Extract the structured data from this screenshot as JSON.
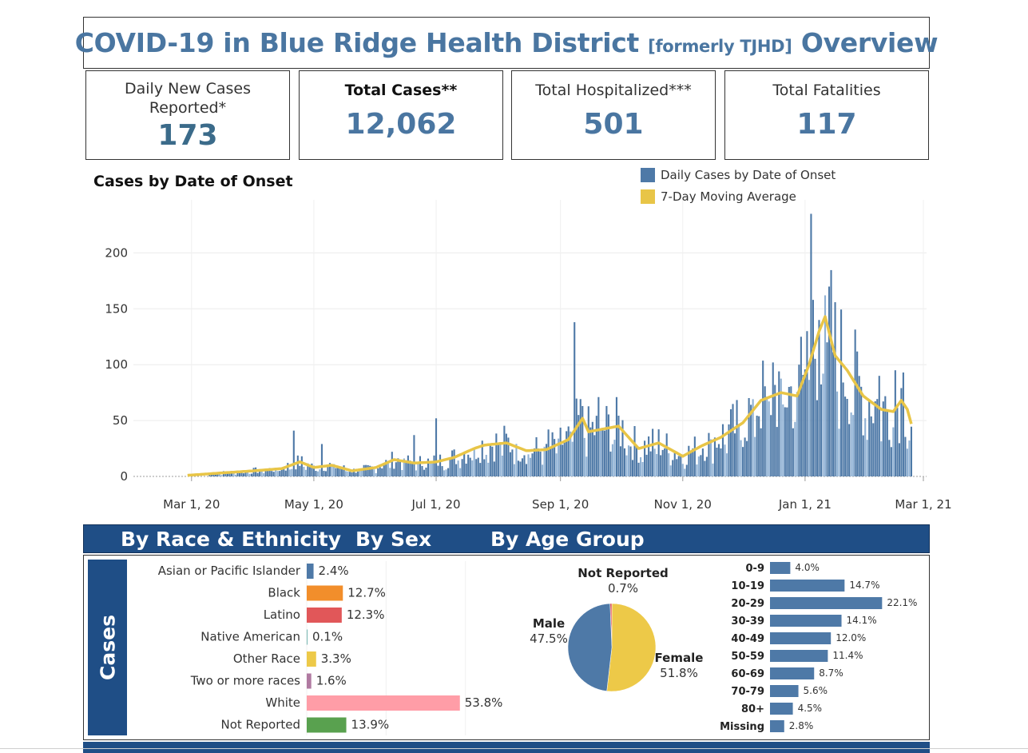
{
  "header": {
    "title_main": "COVID-19 in Blue Ridge Health District",
    "title_small": "[formerly TJHD]",
    "title_end": "Overview"
  },
  "kpis": [
    {
      "label": "Daily New Cases Reported*",
      "value": "173"
    },
    {
      "label": "Total Cases**",
      "value": "12,062"
    },
    {
      "label": "Total Hospitalized***",
      "value": "501"
    },
    {
      "label": "Total Fatalities",
      "value": "117"
    }
  ],
  "colors": {
    "bar": "#4e79a7",
    "bar_light": "#8fb1d4",
    "moving_avg": "#e8c547",
    "banner": "#1f4e86"
  },
  "chart_data": [
    {
      "type": "bar",
      "title": "Cases by Date of Onset",
      "legend": [
        "Daily Cases by Date of Onset",
        "7-Day Moving Average"
      ],
      "legend_position": "top-right",
      "x_ticks": [
        "Mar 1, 20",
        "May 1, 20",
        "Jul 1, 20",
        "Sep 1, 20",
        "Nov 1, 20",
        "Jan 1, 21",
        "Mar 1, 21"
      ],
      "y_ticks": [
        0,
        50,
        100,
        150,
        200
      ],
      "ylim": [
        0,
        245
      ],
      "x_start": "2020-02-01",
      "x_end": "2021-03-01",
      "grid": true,
      "highlight_bars": [
        {
          "date": "2020-04-21",
          "value": 41
        },
        {
          "date": "2020-05-05",
          "value": 29
        },
        {
          "date": "2020-06-20",
          "value": 37
        },
        {
          "date": "2020-07-01",
          "value": 52
        },
        {
          "date": "2020-08-26",
          "value": 42
        },
        {
          "date": "2020-09-08",
          "value": 138
        },
        {
          "date": "2020-09-12",
          "value": 63
        },
        {
          "date": "2020-09-20",
          "value": 71
        },
        {
          "date": "2020-12-16",
          "value": 102
        },
        {
          "date": "2020-12-30",
          "value": 125
        },
        {
          "date": "2021-01-02",
          "value": 130
        },
        {
          "date": "2021-01-04",
          "value": 235
        },
        {
          "date": "2021-01-05",
          "value": 158
        },
        {
          "date": "2021-01-08",
          "value": 140
        },
        {
          "date": "2021-01-12",
          "value": 120
        },
        {
          "date": "2021-02-07",
          "value": 90
        },
        {
          "date": "2021-02-15",
          "value": 95
        },
        {
          "date": "2021-02-19",
          "value": 93
        }
      ],
      "moving_average": [
        {
          "date": "2020-02-28",
          "value": 1
        },
        {
          "date": "2020-03-15",
          "value": 3
        },
        {
          "date": "2020-04-01",
          "value": 5
        },
        {
          "date": "2020-04-15",
          "value": 7
        },
        {
          "date": "2020-04-24",
          "value": 13
        },
        {
          "date": "2020-05-01",
          "value": 8
        },
        {
          "date": "2020-05-10",
          "value": 10
        },
        {
          "date": "2020-05-20",
          "value": 5
        },
        {
          "date": "2020-06-01",
          "value": 8
        },
        {
          "date": "2020-06-10",
          "value": 15
        },
        {
          "date": "2020-06-20",
          "value": 12
        },
        {
          "date": "2020-07-01",
          "value": 13
        },
        {
          "date": "2020-07-10",
          "value": 17
        },
        {
          "date": "2020-07-20",
          "value": 25
        },
        {
          "date": "2020-07-25",
          "value": 28
        },
        {
          "date": "2020-08-05",
          "value": 30
        },
        {
          "date": "2020-08-15",
          "value": 23
        },
        {
          "date": "2020-08-25",
          "value": 24
        },
        {
          "date": "2020-09-05",
          "value": 33
        },
        {
          "date": "2020-09-12",
          "value": 52
        },
        {
          "date": "2020-09-15",
          "value": 40
        },
        {
          "date": "2020-09-30",
          "value": 45
        },
        {
          "date": "2020-10-10",
          "value": 25
        },
        {
          "date": "2020-10-20",
          "value": 30
        },
        {
          "date": "2020-11-01",
          "value": 18
        },
        {
          "date": "2020-11-10",
          "value": 27
        },
        {
          "date": "2020-11-20",
          "value": 35
        },
        {
          "date": "2020-12-01",
          "value": 48
        },
        {
          "date": "2020-12-10",
          "value": 68
        },
        {
          "date": "2020-12-20",
          "value": 75
        },
        {
          "date": "2020-12-28",
          "value": 72
        },
        {
          "date": "2021-01-03",
          "value": 100
        },
        {
          "date": "2021-01-08",
          "value": 130
        },
        {
          "date": "2021-01-11",
          "value": 143
        },
        {
          "date": "2021-01-16",
          "value": 108
        },
        {
          "date": "2021-01-22",
          "value": 95
        },
        {
          "date": "2021-01-30",
          "value": 72
        },
        {
          "date": "2021-02-08",
          "value": 60
        },
        {
          "date": "2021-02-14",
          "value": 58
        },
        {
          "date": "2021-02-18",
          "value": 68
        },
        {
          "date": "2021-02-21",
          "value": 60
        },
        {
          "date": "2021-02-23",
          "value": 47
        }
      ]
    },
    {
      "type": "bar",
      "title": "By Race & Ethnicity",
      "categories": [
        "Asian or Pacific Islander",
        "Black",
        "Latino",
        "Native American",
        "Other Race",
        "Two or more races",
        "White",
        "Not Reported"
      ],
      "values": [
        2.4,
        12.7,
        12.3,
        0.1,
        3.3,
        1.6,
        53.8,
        13.9
      ],
      "labels": [
        "2.4%",
        "12.7%",
        "12.3%",
        "0.1%",
        "3.3%",
        "1.6%",
        "53.8%",
        "13.9%"
      ],
      "colors": [
        "#4e79a7",
        "#f28e2b",
        "#e15759",
        "#76b7b2",
        "#edc948",
        "#b07aa1",
        "#ff9da7",
        "#59a14f"
      ],
      "xlim": [
        0,
        60
      ]
    },
    {
      "type": "pie",
      "title": "By Sex",
      "categories": [
        "Male",
        "Female",
        "Not Reported"
      ],
      "values": [
        47.5,
        51.8,
        0.7
      ],
      "labels": [
        "47.5%",
        "51.8%",
        "0.7%"
      ],
      "colors": [
        "#4e79a7",
        "#edc948",
        "#e15759"
      ]
    },
    {
      "type": "bar",
      "title": "By Age Group",
      "categories": [
        "0-9",
        "10-19",
        "20-29",
        "30-39",
        "40-49",
        "50-59",
        "60-69",
        "70-79",
        "80+",
        "Missing"
      ],
      "values": [
        4.0,
        14.7,
        22.1,
        14.1,
        12.0,
        11.4,
        8.7,
        5.6,
        4.5,
        2.8
      ],
      "labels": [
        "4.0%",
        "14.7%",
        "22.1%",
        "14.1%",
        "12.0%",
        "11.4%",
        "8.7%",
        "5.6%",
        "4.5%",
        "2.8%"
      ],
      "color": "#4e79a7",
      "xlim": [
        0,
        23
      ]
    }
  ],
  "banner": {
    "race": "By Race & Ethnicity",
    "sex": "By Sex",
    "age": "By Age Group"
  },
  "side_label": "Cases"
}
